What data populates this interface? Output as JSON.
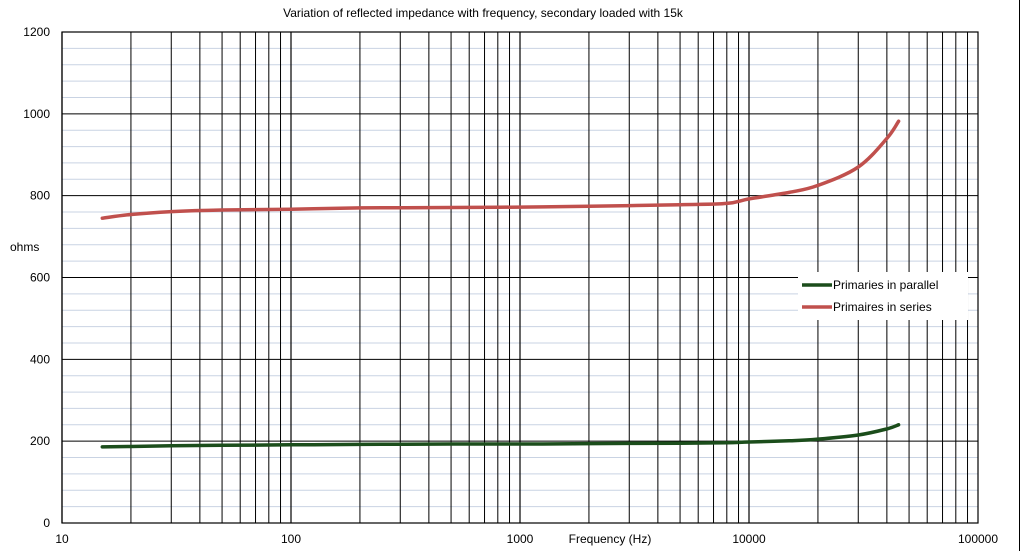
{
  "chart_data": {
    "type": "line",
    "title": "Variation of reflected impedance with frequency, secondary loaded with 15k",
    "xlabel": "Frequency (Hz)",
    "ylabel": "ohms",
    "x_scale": "log",
    "xlim": [
      10,
      100000
    ],
    "ylim": [
      0,
      1200
    ],
    "x_ticks": [
      10,
      100,
      1000,
      10000,
      100000
    ],
    "x_tick_labels": [
      "10",
      "100",
      "1000",
      "10000",
      "100000"
    ],
    "y_ticks": [
      0,
      200,
      400,
      600,
      800,
      1000,
      1200
    ],
    "y_tick_labels": [
      "0",
      "200",
      "400",
      "600",
      "800",
      "1000",
      "1200"
    ],
    "grid": true,
    "legend_position": "right",
    "series": [
      {
        "name": "Primaries in parallel",
        "color": "#1b4d1b",
        "x": [
          15,
          20,
          30,
          50,
          100,
          200,
          500,
          1000,
          2000,
          5000,
          8000,
          10000,
          15000,
          20000,
          30000,
          40000,
          45000
        ],
        "y": [
          186,
          187,
          189,
          190,
          191,
          192,
          193,
          193,
          194,
          195,
          196,
          198,
          201,
          205,
          215,
          230,
          240
        ]
      },
      {
        "name": "Primaires in series",
        "color": "#c0504d",
        "x": [
          15,
          20,
          30,
          50,
          100,
          200,
          500,
          1000,
          2000,
          5000,
          8000,
          10000,
          15000,
          20000,
          30000,
          40000,
          45000
        ],
        "y": [
          745,
          754,
          761,
          765,
          767,
          770,
          771,
          772,
          774,
          778,
          781,
          792,
          808,
          825,
          870,
          940,
          982
        ]
      }
    ]
  }
}
